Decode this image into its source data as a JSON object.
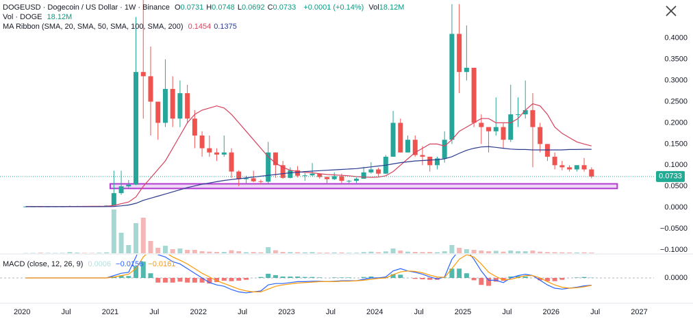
{
  "header": {
    "symbol": "DOGEUSD · Dogecoin / US Dollar · 1W · Binance",
    "ohlc": [
      {
        "key": "O",
        "value": "0.0731"
      },
      {
        "key": "H",
        "value": "0.0748"
      },
      {
        "key": "L",
        "value": "0.0692"
      },
      {
        "key": "C",
        "value": "0.0733"
      }
    ],
    "change": "+0.0001 (+0.14%)",
    "vol_key": "Vol",
    "vol_value": "18.12M"
  },
  "chart_data": {
    "type": "candlestick",
    "x": [
      "2020-01",
      "2020-02",
      "2020-03",
      "2020-04",
      "2020-05",
      "2020-06",
      "2020-07",
      "2020-08",
      "2020-09",
      "2020-10",
      "2020-11",
      "2020-12",
      "2021-01",
      "2021-02",
      "2021-03",
      "2021-04",
      "2021-05",
      "2021-06",
      "2021-07",
      "2021-08",
      "2021-09",
      "2021-10",
      "2021-11",
      "2021-12",
      "2022-01",
      "2022-02",
      "2022-03",
      "2022-04",
      "2022-05",
      "2022-06",
      "2022-07",
      "2022-08",
      "2022-09",
      "2022-10",
      "2022-11",
      "2022-12",
      "2023-01",
      "2023-02",
      "2023-03",
      "2023-04",
      "2023-05",
      "2023-06",
      "2023-07",
      "2023-08",
      "2023-09",
      "2023-10",
      "2023-11",
      "2023-12",
      "2024-01",
      "2024-02",
      "2024-03",
      "2024-04",
      "2024-05",
      "2024-06",
      "2024-07",
      "2024-08",
      "2024-09",
      "2024-10",
      "2024-11",
      "2024-12",
      "2025-01",
      "2025-02",
      "2025-03",
      "2025-04",
      "2025-05",
      "2025-06",
      "2025-07",
      "2025-08",
      "2025-09",
      "2025-10",
      "2025-11",
      "2025-12",
      "2026-01",
      "2026-02",
      "2026-03",
      "2026-04",
      "2026-05",
      "2026-06"
    ],
    "open": [
      0.002,
      0.0025,
      0.0025,
      0.0019,
      0.0024,
      0.0025,
      0.0025,
      0.0032,
      0.0035,
      0.0033,
      0.0026,
      0.0033,
      0.0047,
      0.034,
      0.05,
      0.054,
      0.32,
      0.31,
      0.25,
      0.2,
      0.28,
      0.21,
      0.27,
      0.21,
      0.17,
      0.14,
      0.13,
      0.125,
      0.13,
      0.085,
      0.067,
      0.069,
      0.062,
      0.061,
      0.13,
      0.1,
      0.07,
      0.088,
      0.075,
      0.076,
      0.08,
      0.072,
      0.067,
      0.074,
      0.063,
      0.063,
      0.068,
      0.083,
      0.09,
      0.08,
      0.12,
      0.2,
      0.13,
      0.16,
      0.124,
      0.12,
      0.1,
      0.116,
      0.16,
      0.41,
      0.32,
      0.33,
      0.2,
      0.19,
      0.18,
      0.19,
      0.16,
      0.22,
      0.22,
      0.23,
      0.19,
      0.15,
      0.12,
      0.1,
      0.095,
      0.09,
      0.1,
      0.09
    ],
    "high": [
      0.003,
      0.0032,
      0.0026,
      0.0025,
      0.0028,
      0.0034,
      0.0046,
      0.004,
      0.0036,
      0.0034,
      0.004,
      0.0054,
      0.087,
      0.087,
      0.065,
      0.45,
      0.74,
      0.38,
      0.25,
      0.35,
      0.31,
      0.3,
      0.29,
      0.23,
      0.18,
      0.17,
      0.14,
      0.17,
      0.14,
      0.088,
      0.075,
      0.087,
      0.066,
      0.155,
      0.13,
      0.11,
      0.095,
      0.098,
      0.081,
      0.105,
      0.08,
      0.073,
      0.083,
      0.08,
      0.065,
      0.071,
      0.096,
      0.107,
      0.094,
      0.124,
      0.228,
      0.21,
      0.17,
      0.17,
      0.145,
      0.12,
      0.12,
      0.18,
      0.48,
      0.48,
      0.43,
      0.33,
      0.22,
      0.19,
      0.26,
      0.2,
      0.29,
      0.26,
      0.3,
      0.27,
      0.2,
      0.15,
      0.13,
      0.11,
      0.1,
      0.1,
      0.117,
      0.095
    ],
    "low": [
      0.002,
      0.0024,
      0.0013,
      0.0018,
      0.0023,
      0.0024,
      0.0022,
      0.003,
      0.003,
      0.0025,
      0.0025,
      0.0033,
      0.0047,
      0.03,
      0.045,
      0.053,
      0.21,
      0.17,
      0.16,
      0.19,
      0.19,
      0.19,
      0.2,
      0.14,
      0.12,
      0.12,
      0.11,
      0.12,
      0.07,
      0.05,
      0.055,
      0.06,
      0.055,
      0.057,
      0.07,
      0.068,
      0.069,
      0.071,
      0.063,
      0.074,
      0.068,
      0.056,
      0.065,
      0.058,
      0.058,
      0.058,
      0.068,
      0.08,
      0.074,
      0.079,
      0.12,
      0.13,
      0.13,
      0.12,
      0.1,
      0.085,
      0.09,
      0.106,
      0.15,
      0.27,
      0.3,
      0.19,
      0.15,
      0.13,
      0.17,
      0.14,
      0.155,
      0.19,
      0.21,
      0.095,
      0.13,
      0.11,
      0.09,
      0.088,
      0.085,
      0.085,
      0.085,
      0.069
    ],
    "close": [
      0.0025,
      0.0025,
      0.0019,
      0.0024,
      0.0025,
      0.0025,
      0.0032,
      0.0035,
      0.0033,
      0.0026,
      0.0033,
      0.0047,
      0.034,
      0.05,
      0.054,
      0.32,
      0.31,
      0.25,
      0.2,
      0.28,
      0.21,
      0.27,
      0.21,
      0.17,
      0.14,
      0.13,
      0.125,
      0.13,
      0.085,
      0.067,
      0.069,
      0.062,
      0.061,
      0.13,
      0.1,
      0.07,
      0.088,
      0.075,
      0.076,
      0.08,
      0.072,
      0.067,
      0.074,
      0.063,
      0.063,
      0.068,
      0.083,
      0.09,
      0.08,
      0.12,
      0.2,
      0.13,
      0.16,
      0.124,
      0.12,
      0.1,
      0.116,
      0.16,
      0.41,
      0.32,
      0.33,
      0.2,
      0.19,
      0.18,
      0.19,
      0.16,
      0.22,
      0.22,
      0.23,
      0.19,
      0.15,
      0.12,
      0.1,
      0.095,
      0.09,
      0.1,
      0.09,
      0.0733
    ],
    "up_color": "#26a69a",
    "down_color": "#ef5350",
    "last_label": "0.0733",
    "last_color": "#22ab94",
    "ylim": [
      -0.108,
      0.49
    ],
    "yticks": [
      {
        "value": 0.4,
        "label": "0.4000"
      },
      {
        "value": 0.35,
        "label": "0.3500"
      },
      {
        "value": 0.3,
        "label": "0.3000"
      },
      {
        "value": 0.25,
        "label": "0.2500"
      },
      {
        "value": 0.2,
        "label": "0.2000"
      },
      {
        "value": 0.15,
        "label": "0.1500"
      },
      {
        "value": 0.1,
        "label": "0.1000"
      },
      {
        "value": 0.05,
        "label": "0.0500"
      },
      {
        "value": 0,
        "label": "0.0000"
      },
      {
        "value": -0.05,
        "label": "−0.0500"
      },
      {
        "value": -0.1,
        "label": "−0.1000"
      }
    ],
    "xlim": [
      "2019-10",
      "2027-03"
    ],
    "xticks": [
      {
        "value": "2020-01",
        "label": "2020"
      },
      {
        "value": "2020-07",
        "label": "Jul"
      },
      {
        "value": "2021-01",
        "label": "2021"
      },
      {
        "value": "2021-07",
        "label": "Jul"
      },
      {
        "value": "2022-01",
        "label": "2022"
      },
      {
        "value": "2022-07",
        "label": "Jul"
      },
      {
        "value": "2023-01",
        "label": "2023"
      },
      {
        "value": "2023-07",
        "label": "Jul"
      },
      {
        "value": "2024-01",
        "label": "2024"
      },
      {
        "value": "2024-07",
        "label": "Jul"
      },
      {
        "value": "2025-01",
        "label": "2025"
      },
      {
        "value": "2025-07",
        "label": "Jul"
      },
      {
        "value": "2026-01",
        "label": "2026"
      },
      {
        "value": "2026-07",
        "label": "Jul"
      },
      {
        "value": "2027-01",
        "label": "2027"
      }
    ],
    "volume": {
      "name": "Vol · DOGE",
      "label": "18.12M",
      "lim": [
        0,
        40000
      ],
      "up_color": "#a6d8d3",
      "down_color": "#f5b7b5",
      "values": [
        200,
        250,
        400,
        300,
        250,
        300,
        900,
        500,
        300,
        250,
        400,
        700,
        32000,
        15000,
        6000,
        22000,
        26000,
        9000,
        4000,
        5500,
        3000,
        3500,
        2500,
        2500,
        1500,
        1200,
        1000,
        1000,
        2200,
        1500,
        800,
        900,
        700,
        4500,
        2200,
        1000,
        900,
        800,
        700,
        900,
        500,
        500,
        600,
        600,
        400,
        400,
        900,
        1200,
        800,
        1400,
        3500,
        2000,
        1200,
        1000,
        900,
        1000,
        800,
        1500,
        6000,
        4000,
        3000,
        2500,
        2000,
        1500,
        1800,
        1200,
        2000,
        1500,
        1500,
        2000,
        1200,
        900,
        800,
        700,
        600,
        600,
        700,
        500
      ]
    },
    "ma_ribbon": {
      "label": "MA Ribbon (SMA, 20, SMA, 50, SMA, 100, SMA, 200)",
      "lines": [
        {
          "color": "#d8405c",
          "label": "0.1454",
          "values": [
            0.0024,
            0.0025,
            0.0025,
            0.0024,
            0.0024,
            0.0024,
            0.0025,
            0.0026,
            0.0027,
            0.0028,
            0.0029,
            0.0031,
            0.005,
            0.009,
            0.013,
            0.025,
            0.05,
            0.07,
            0.09,
            0.11,
            0.14,
            0.17,
            0.2,
            0.22,
            0.23,
            0.235,
            0.24,
            0.235,
            0.22,
            0.2,
            0.18,
            0.16,
            0.14,
            0.12,
            0.105,
            0.095,
            0.088,
            0.085,
            0.083,
            0.082,
            0.08,
            0.078,
            0.077,
            0.076,
            0.075,
            0.073,
            0.072,
            0.071,
            0.072,
            0.075,
            0.085,
            0.1,
            0.115,
            0.13,
            0.14,
            0.15,
            0.15,
            0.145,
            0.16,
            0.18,
            0.19,
            0.2,
            0.21,
            0.21,
            0.2,
            0.2,
            0.2,
            0.21,
            0.23,
            0.245,
            0.24,
            0.22,
            0.19,
            0.175,
            0.165,
            0.155,
            0.15,
            0.1454
          ]
        },
        {
          "color": "#2a3a8f",
          "label": "0.1375",
          "values": [
            0.002,
            0.002,
            0.002,
            0.002,
            0.002,
            0.002,
            0.002,
            0.002,
            0.002,
            0.002,
            0.002,
            0.0022,
            0.0025,
            0.004,
            0.006,
            0.01,
            0.017,
            0.022,
            0.027,
            0.032,
            0.037,
            0.042,
            0.047,
            0.051,
            0.055,
            0.058,
            0.061,
            0.064,
            0.066,
            0.068,
            0.07,
            0.072,
            0.074,
            0.076,
            0.078,
            0.08,
            0.082,
            0.083,
            0.085,
            0.086,
            0.087,
            0.088,
            0.089,
            0.09,
            0.091,
            0.092,
            0.094,
            0.096,
            0.098,
            0.1,
            0.103,
            0.106,
            0.108,
            0.11,
            0.111,
            0.112,
            0.113,
            0.115,
            0.12,
            0.128,
            0.135,
            0.14,
            0.143,
            0.144,
            0.142,
            0.14,
            0.138,
            0.137,
            0.137,
            0.136,
            0.136,
            0.136,
            0.136,
            0.136,
            0.137,
            0.137,
            0.1375,
            0.1375
          ]
        }
      ]
    },
    "zone": {
      "from": "2021-01",
      "to": "2026-10",
      "low": 0.045,
      "high": 0.056,
      "color": "#b13bd1"
    },
    "macd": {
      "label": "MACD (close, 12, 26, 9)",
      "lim": [
        -0.05,
        0.05
      ],
      "yticks": [
        {
          "value": 0,
          "label": "0.0000"
        }
      ],
      "hist": {
        "up_color": "#26a69a",
        "down_color": "#ef5350",
        "label": "0.0006",
        "values": [
          0,
          0,
          0,
          0,
          0,
          0,
          0,
          0,
          0,
          0,
          0,
          0,
          0.003,
          0.005,
          0.004,
          0.025,
          0.035,
          0.01,
          -0.01,
          -0.01,
          -0.01,
          -0.008,
          -0.01,
          -0.01,
          -0.01,
          -0.012,
          -0.009,
          -0.006,
          -0.007,
          -0.006,
          -0.004,
          0,
          0.002,
          0.009,
          0.006,
          0.003,
          0.003,
          0.003,
          0.002,
          0.002,
          0.001,
          0,
          0.001,
          0.001,
          0.001,
          0,
          0.002,
          0.003,
          0.001,
          0.002,
          0.008,
          0.007,
          0,
          -0.002,
          -0.003,
          -0.004,
          -0.004,
          0.001,
          0.02,
          0.02,
          0.01,
          -0.005,
          -0.015,
          -0.017,
          -0.008,
          -0.006,
          0.003,
          0.004,
          0.003,
          0,
          -0.005,
          -0.007,
          -0.007,
          -0.004,
          0,
          0.001,
          0.002,
          0.0006
        ]
      },
      "macd": {
        "color": "#2962ff",
        "label": "−0.0156",
        "values": [
          0,
          0,
          0,
          0,
          0,
          0,
          0,
          0,
          0,
          0,
          0,
          0,
          0.005,
          0.01,
          0.012,
          0.045,
          0.08,
          0.07,
          0.05,
          0.045,
          0.035,
          0.03,
          0.02,
          0.01,
          0,
          -0.01,
          -0.015,
          -0.018,
          -0.025,
          -0.03,
          -0.032,
          -0.03,
          -0.028,
          -0.015,
          -0.012,
          -0.012,
          -0.01,
          -0.008,
          -0.008,
          -0.007,
          -0.007,
          -0.008,
          -0.007,
          -0.006,
          -0.006,
          -0.006,
          -0.003,
          0,
          0,
          0.002,
          0.015,
          0.02,
          0.015,
          0.012,
          0.008,
          0.002,
          -0.002,
          0.002,
          0.04,
          0.06,
          0.06,
          0.04,
          0.015,
          -0.005,
          -0.005,
          -0.01,
          0,
          0.005,
          0.008,
          0.005,
          -0.005,
          -0.015,
          -0.022,
          -0.024,
          -0.022,
          -0.02,
          -0.017,
          -0.0156
        ]
      },
      "signal": {
        "color": "#ff9800",
        "label": "−0.0161",
        "values": [
          0,
          0,
          0,
          0,
          0,
          0,
          0,
          0,
          0,
          0,
          0,
          0,
          0.002,
          0.005,
          0.008,
          0.02,
          0.045,
          0.06,
          0.06,
          0.055,
          0.045,
          0.038,
          0.03,
          0.02,
          0.01,
          0.002,
          -0.006,
          -0.012,
          -0.018,
          -0.024,
          -0.028,
          -0.03,
          -0.03,
          -0.024,
          -0.018,
          -0.015,
          -0.013,
          -0.011,
          -0.01,
          -0.009,
          -0.008,
          -0.008,
          -0.008,
          -0.007,
          -0.007,
          -0.006,
          -0.005,
          -0.003,
          -0.001,
          0,
          0.007,
          0.013,
          0.015,
          0.014,
          0.011,
          0.006,
          0.002,
          0.001,
          0.02,
          0.04,
          0.05,
          0.045,
          0.03,
          0.012,
          0.003,
          -0.004,
          -0.003,
          0.001,
          0.005,
          0.005,
          0,
          -0.008,
          -0.015,
          -0.02,
          -0.022,
          -0.021,
          -0.019,
          -0.0161
        ]
      }
    }
  }
}
